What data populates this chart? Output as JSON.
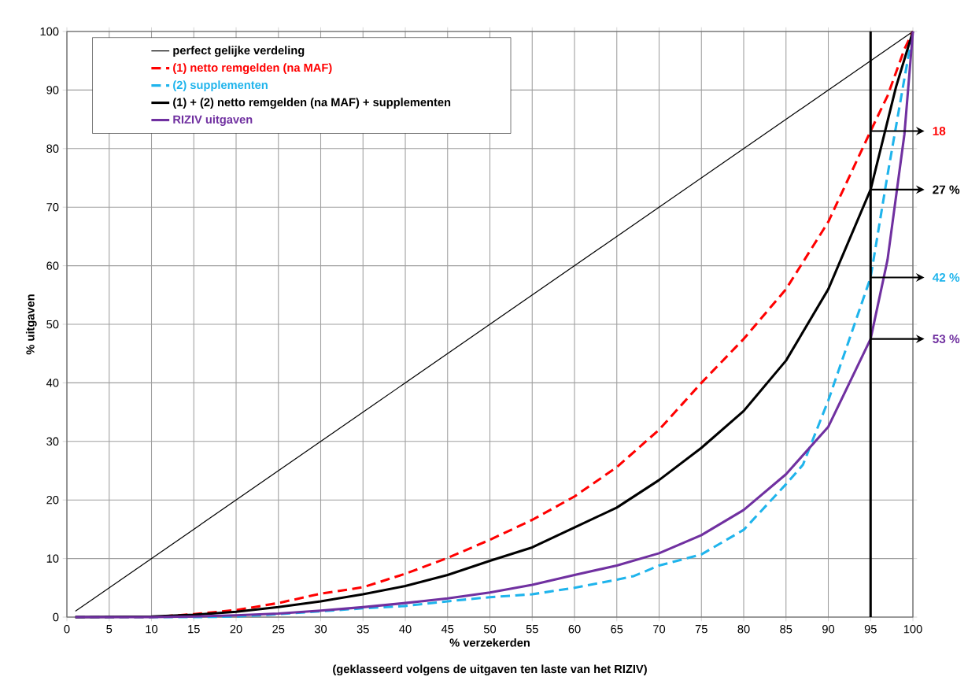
{
  "chart_data": {
    "type": "line",
    "xlabel": "% verzekerden",
    "ylabel": "% uitgaven",
    "xlim": [
      0,
      100
    ],
    "ylim": [
      0,
      100
    ],
    "xticks": [
      0,
      5,
      10,
      15,
      20,
      25,
      30,
      35,
      40,
      45,
      50,
      55,
      60,
      65,
      70,
      75,
      80,
      85,
      90,
      95,
      100
    ],
    "yticks": [
      0,
      10,
      20,
      30,
      40,
      50,
      60,
      70,
      80,
      90,
      100
    ],
    "grid": true,
    "legend": "top left",
    "marker": "none",
    "series": [
      {
        "name": "perfect gelijke verdeling",
        "color": "#000000",
        "line_style": "solid",
        "x": [
          1,
          100
        ],
        "values": [
          1,
          100
        ]
      },
      {
        "name": "(1) netto remgelden (na MAF)",
        "color": "#ff0000",
        "line_style": "dashed",
        "x": [
          1,
          10,
          15,
          20,
          25,
          30,
          35,
          40,
          45,
          50,
          55,
          60,
          65,
          70,
          75,
          80,
          85,
          90,
          95,
          97,
          99,
          100
        ],
        "values": [
          0,
          0,
          0.5,
          1.2,
          2.4,
          4.0,
          5.1,
          7.4,
          10.1,
          13.2,
          16.6,
          20.6,
          25.6,
          32,
          40,
          47.5,
          56,
          67.5,
          83,
          89,
          97,
          100
        ]
      },
      {
        "name": "(2) supplementen",
        "color": "#1fb4ec",
        "line_style": "dashed",
        "x": [
          1,
          15,
          20,
          25,
          30,
          35,
          40,
          45,
          50,
          55,
          60,
          65,
          67,
          70,
          75,
          80,
          85,
          87,
          90,
          95,
          97,
          99,
          100
        ],
        "values": [
          0,
          0,
          0.1,
          0.5,
          1.0,
          1.5,
          1.9,
          2.7,
          3.4,
          3.9,
          5.0,
          6.4,
          7.0,
          8.8,
          10.7,
          14.9,
          22.7,
          26,
          37,
          58,
          75.5,
          92,
          100
        ]
      },
      {
        "name": "(1) + (2) netto remgelden (na MAF) + supplementen",
        "color": "#000000",
        "line_style": "solid",
        "x": [
          1,
          10,
          15,
          20,
          25,
          30,
          35,
          40,
          45,
          50,
          55,
          60,
          65,
          70,
          75,
          80,
          85,
          90,
          95,
          98,
          100
        ],
        "values": [
          0,
          0.1,
          0.4,
          0.9,
          1.7,
          2.7,
          3.9,
          5.3,
          7.2,
          9.6,
          11.9,
          15.3,
          18.7,
          23.4,
          28.9,
          35.2,
          43.8,
          56,
          73,
          90.5,
          100
        ]
      },
      {
        "name": "RIZIV uitgaven",
        "color": "#7030a0",
        "line_style": "solid",
        "x": [
          1,
          10,
          15,
          20,
          25,
          30,
          35,
          40,
          45,
          50,
          55,
          60,
          65,
          70,
          75,
          80,
          85,
          90,
          95,
          97,
          99,
          100
        ],
        "values": [
          0,
          0,
          0.1,
          0.3,
          0.6,
          1.1,
          1.7,
          2.4,
          3.2,
          4.2,
          5.5,
          7.2,
          8.8,
          10.9,
          14.0,
          18.3,
          24.4,
          32.5,
          47.5,
          61,
          82.5,
          100
        ]
      }
    ],
    "ref_lines": [
      {
        "axis": "x",
        "value": 95,
        "color": "#000000",
        "line_style": "solid"
      }
    ],
    "annotations": [
      "18",
      "27 %",
      "42 %",
      "53 %",
      "(geklasseerd volgens de uitgaven ten laste van het RIZIV)"
    ]
  }
}
